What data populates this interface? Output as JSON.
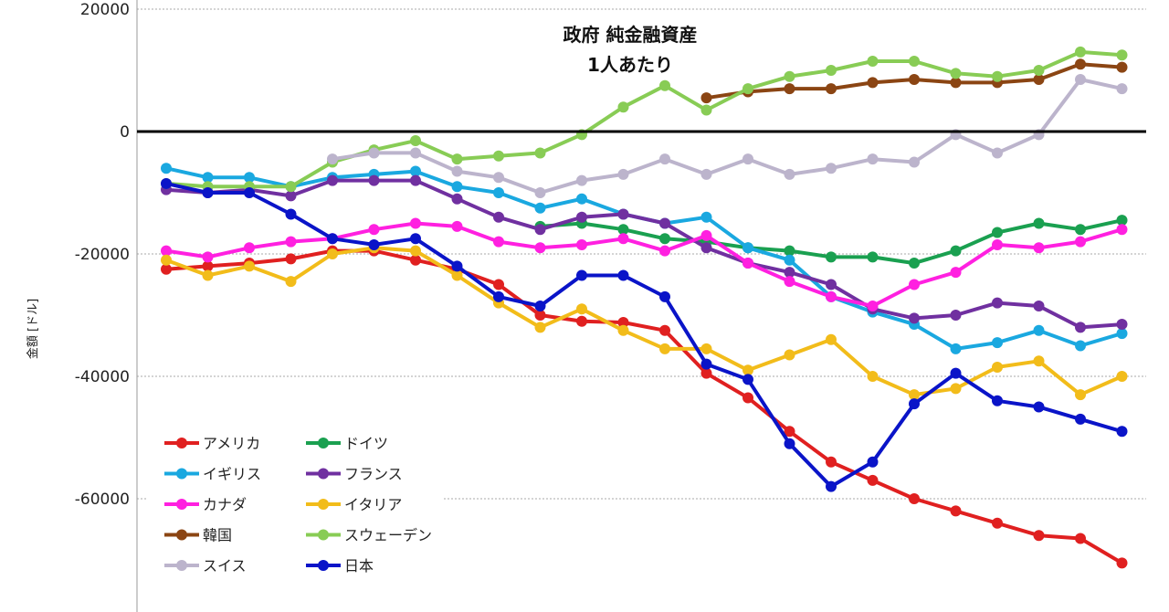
{
  "chart_data": {
    "type": "line",
    "title": "政府 純金融資産",
    "subtitle": "1人あたり",
    "ylabel": "金額 [ドル]",
    "xlabel": "",
    "ylim": [
      -70000,
      20000
    ],
    "yticks": [
      20000,
      0,
      -20000,
      -40000,
      -60000
    ],
    "ytick_labels": [
      "20000",
      "0",
      "-20000",
      "-40000",
      "-60000"
    ],
    "x": [
      0,
      1,
      2,
      3,
      4,
      5,
      6,
      7,
      8,
      9,
      10,
      11,
      12,
      13,
      14,
      15,
      16,
      17,
      18,
      19,
      20,
      21,
      22,
      23,
      24
    ],
    "grid": "horizontal dotted",
    "legend_position": "bottom-left",
    "series": [
      {
        "name": "アメリカ",
        "color": "#e02020",
        "values": [
          -22500,
          -22000,
          -21500,
          -20800,
          -19500,
          -19500,
          -21000,
          -22500,
          -25000,
          -30000,
          -31000,
          -31200,
          -32500,
          -39500,
          -43500,
          -49000,
          -54000,
          -57000,
          -60000,
          -62000,
          -64000,
          -66000,
          -66500,
          -70500,
          null
        ]
      },
      {
        "name": "ドイツ",
        "color": "#1aa050",
        "values": [
          null,
          null,
          null,
          null,
          null,
          null,
          null,
          null,
          null,
          -15500,
          -15000,
          -16000,
          -17500,
          -18000,
          -19000,
          -19500,
          -20500,
          -20500,
          -21500,
          -19500,
          -16500,
          -15000,
          -16000,
          -14500,
          null
        ]
      },
      {
        "name": "イギリス",
        "color": "#1aa8e0",
        "values": [
          -6000,
          -7500,
          -7500,
          -9000,
          -7500,
          -7000,
          -6500,
          -9000,
          -10000,
          -12500,
          -11000,
          -13500,
          -15000,
          -14000,
          -19000,
          -21000,
          -27000,
          -29500,
          -31500,
          -35500,
          -34500,
          -32500,
          -35000,
          -33000,
          null
        ]
      },
      {
        "name": "フランス",
        "color": "#7030a0",
        "values": [
          -9500,
          -10000,
          -9500,
          -10500,
          -8000,
          -8000,
          -8000,
          -11000,
          -14000,
          -16000,
          -14000,
          -13500,
          -15000,
          -19000,
          -21500,
          -23000,
          -25000,
          -29000,
          -30500,
          -30000,
          -28000,
          -28500,
          -32000,
          -31500,
          null
        ]
      },
      {
        "name": "カナダ",
        "color": "#ff20e0",
        "values": [
          -19500,
          -20500,
          -19000,
          -18000,
          -17500,
          -16000,
          -15000,
          -15500,
          -18000,
          -19000,
          -18500,
          -17500,
          -19500,
          -17000,
          -21500,
          -24500,
          -27000,
          -28500,
          -25000,
          -23000,
          -18500,
          -19000,
          -18000,
          -16000,
          null
        ]
      },
      {
        "name": "イタリア",
        "color": "#f2bc1a",
        "values": [
          -21000,
          -23500,
          -22000,
          -24500,
          -20000,
          -19000,
          -19500,
          -23500,
          -28000,
          -32000,
          -29000,
          -32500,
          -35500,
          -35500,
          -39000,
          -36500,
          -34000,
          -40000,
          -43000,
          -42000,
          -38500,
          -37500,
          -43000,
          -40000,
          null
        ]
      },
      {
        "name": "韓国",
        "color": "#8b4513",
        "values": [
          null,
          null,
          null,
          null,
          null,
          null,
          null,
          null,
          null,
          null,
          null,
          null,
          null,
          5500,
          6500,
          7000,
          7000,
          8000,
          8500,
          8000,
          8000,
          8500,
          11000,
          10500,
          null
        ]
      },
      {
        "name": "スウェーデン",
        "color": "#88cc55",
        "values": [
          -8500,
          -9000,
          -9000,
          -9000,
          -5000,
          -3000,
          -1500,
          -4500,
          -4000,
          -3500,
          -500,
          4000,
          7500,
          3500,
          7000,
          9000,
          10000,
          11500,
          11500,
          9500,
          9000,
          10000,
          13000,
          12500,
          null
        ]
      },
      {
        "name": "スイス",
        "color": "#bcb4cc",
        "values": [
          null,
          null,
          null,
          null,
          -4500,
          -3500,
          -3500,
          -6500,
          -7500,
          -10000,
          -8000,
          -7000,
          -4500,
          -7000,
          -4500,
          -7000,
          -6000,
          -4500,
          -5000,
          -500,
          -3500,
          -500,
          8500,
          7000,
          null
        ]
      },
      {
        "name": "日本",
        "color": "#0a14c8",
        "values": [
          -8500,
          -10000,
          -10000,
          -13500,
          -17500,
          -18500,
          -17500,
          -22000,
          -27000,
          -28500,
          -23500,
          -23500,
          -27000,
          -38000,
          -40500,
          -51000,
          -58000,
          -54000,
          -44500,
          -39500,
          -44000,
          -45000,
          -47000,
          -49000,
          null
        ]
      }
    ]
  }
}
